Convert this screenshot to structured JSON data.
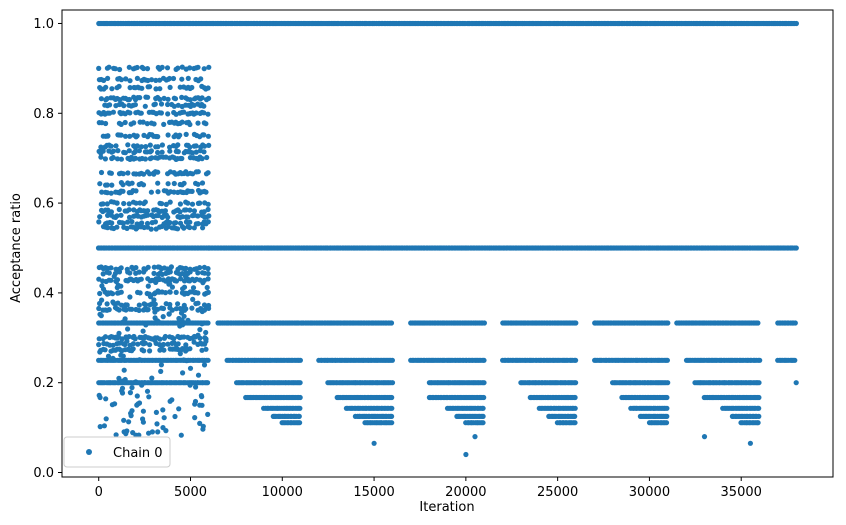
{
  "chart_data": {
    "type": "scatter",
    "title": "",
    "xlabel": "Iteration",
    "ylabel": "Acceptance ratio",
    "xlim": [
      -2000,
      40000
    ],
    "ylim": [
      -0.01,
      1.03
    ],
    "xticks": [
      0,
      5000,
      10000,
      15000,
      20000,
      25000,
      30000,
      35000
    ],
    "yticks": [
      0.0,
      0.2,
      0.4,
      0.6,
      0.8,
      1.0
    ],
    "xtick_labels": [
      "0",
      "5000",
      "10000",
      "15000",
      "20000",
      "25000",
      "30000",
      "35000"
    ],
    "ytick_labels": [
      "0.0",
      "0.2",
      "0.4",
      "0.6",
      "0.8",
      "1.0"
    ],
    "grid": false,
    "legend": {
      "placement": "lower-left",
      "entries": [
        "Chain 0"
      ]
    },
    "marker_color": "#1f77b4",
    "series": [
      {
        "name": "Chain 0",
        "levels": [
          {
            "y": 1.0,
            "x_ranges": [
              [
                0,
                38000
              ]
            ]
          },
          {
            "y": 0.5,
            "x_ranges": [
              [
                0,
                38000
              ]
            ]
          },
          {
            "y": 0.333,
            "x_ranges": [
              [
                0,
                6000
              ],
              [
                6500,
                16000
              ],
              [
                17000,
                21000
              ],
              [
                22000,
                26000
              ],
              [
                27000,
                31000
              ],
              [
                31500,
                36000
              ],
              [
                37000,
                38000
              ]
            ]
          },
          {
            "y": 0.25,
            "x_ranges": [
              [
                0,
                6000
              ],
              [
                7000,
                11000
              ],
              [
                12000,
                16000
              ],
              [
                17000,
                21000
              ],
              [
                22000,
                26000
              ],
              [
                27000,
                31000
              ],
              [
                32000,
                36000
              ],
              [
                37000,
                38000
              ]
            ]
          },
          {
            "y": 0.2,
            "x_ranges": [
              [
                0,
                6000
              ],
              [
                7500,
                11000
              ],
              [
                12500,
                16000
              ],
              [
                18000,
                21000
              ],
              [
                23000,
                26000
              ],
              [
                28000,
                31000
              ],
              [
                32500,
                36000
              ],
              [
                38000,
                38000
              ]
            ]
          },
          {
            "y": 0.167,
            "x_ranges": [
              [
                8000,
                11000
              ],
              [
                13000,
                16000
              ],
              [
                18000,
                21000
              ],
              [
                23500,
                26000
              ],
              [
                28500,
                31000
              ],
              [
                33000,
                36000
              ]
            ]
          },
          {
            "y": 0.143,
            "x_ranges": [
              [
                9000,
                11000
              ],
              [
                13500,
                16000
              ],
              [
                19000,
                21000
              ],
              [
                24000,
                26000
              ],
              [
                29000,
                31000
              ],
              [
                34000,
                36000
              ]
            ]
          },
          {
            "y": 0.125,
            "x_ranges": [
              [
                9500,
                11000
              ],
              [
                14000,
                16000
              ],
              [
                19500,
                21000
              ],
              [
                24500,
                26000
              ],
              [
                29500,
                31000
              ],
              [
                34500,
                36000
              ]
            ]
          },
          {
            "y": 0.111,
            "x_ranges": [
              [
                10000,
                11000
              ],
              [
                14500,
                16000
              ],
              [
                20000,
                21000
              ],
              [
                25000,
                26000
              ],
              [
                30000,
                31000
              ],
              [
                35000,
                36000
              ]
            ]
          }
        ],
        "burn_in": {
          "x_range": [
            0,
            6000
          ],
          "y_band": [
            0.07,
            0.94
          ],
          "dense_levels": [
            0.9,
            0.875,
            0.857,
            0.833,
            0.818,
            0.8,
            0.778,
            0.75,
            0.727,
            0.714,
            0.7,
            0.667,
            0.643,
            0.625,
            0.6,
            0.583,
            0.571,
            0.556,
            0.545,
            0.455,
            0.444,
            0.429,
            0.4,
            0.375,
            0.364,
            0.3,
            0.286,
            0.273
          ]
        },
        "sample_points": [
          [
            0,
            0.9
          ],
          [
            500,
            0.75
          ],
          [
            1000,
            0.6
          ],
          [
            2000,
            0.857
          ],
          [
            3000,
            0.667
          ],
          [
            4000,
            0.545
          ],
          [
            5000,
            0.8
          ],
          [
            6000,
            0.5
          ],
          [
            1500,
            0.3
          ],
          [
            2500,
            0.2
          ],
          [
            3500,
            0.1
          ],
          [
            4500,
            0.083
          ],
          [
            5500,
            0.15
          ],
          [
            20000,
            0.04
          ],
          [
            15000,
            0.065
          ],
          [
            35500,
            0.065
          ],
          [
            33000,
            0.08
          ],
          [
            20500,
            0.08
          ]
        ]
      }
    ]
  }
}
